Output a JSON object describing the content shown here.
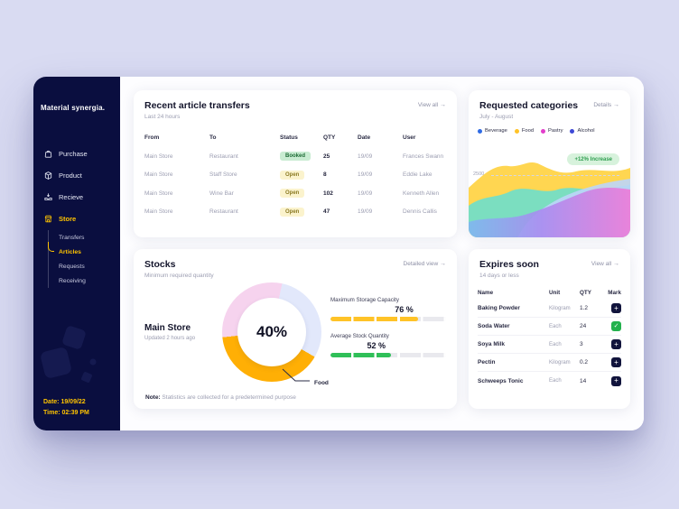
{
  "app": {
    "brand": "Material synergia."
  },
  "icons": {
    "arrow": "→",
    "plus": "+",
    "check": "✓"
  },
  "sidebar": {
    "items": [
      {
        "label": "Purchase"
      },
      {
        "label": "Product"
      },
      {
        "label": "Recieve"
      },
      {
        "label": "Store"
      }
    ],
    "sub_items": [
      {
        "label": "Transfers"
      },
      {
        "label": "Articles"
      },
      {
        "label": "Requests"
      },
      {
        "label": "Receiving"
      }
    ],
    "date": "Date: 19/09/22",
    "time": "Time: 02:39 PM"
  },
  "transfers": {
    "title": "Recent article transfers",
    "subtitle": "Last 24 hours",
    "view_all": "View all",
    "columns": {
      "from": "From",
      "to": "To",
      "status": "Status",
      "qty": "QTY",
      "date": "Date",
      "user": "User"
    },
    "rows": [
      {
        "from": "Main Store",
        "to": "Restaurant",
        "status": "Booked",
        "qty": "25",
        "date": "19/09",
        "user": "Frances Swann"
      },
      {
        "from": "Main Store",
        "to": "Staff Store",
        "status": "Open",
        "qty": "8",
        "date": "19/09",
        "user": "Eddie Lake"
      },
      {
        "from": "Main Store",
        "to": "Wine Bar",
        "status": "Open",
        "qty": "102",
        "date": "19/09",
        "user": "Kenneth Allen"
      },
      {
        "from": "Main Store",
        "to": "Restaurant",
        "status": "Open",
        "qty": "47",
        "date": "19/09",
        "user": "Dennis Callis"
      }
    ]
  },
  "categories": {
    "title": "Requested categories",
    "subtitle": "July - August",
    "details": "Details",
    "legend": [
      {
        "label": "Beverage",
        "color": "#2f6be4"
      },
      {
        "label": "Food",
        "color": "#ffc327"
      },
      {
        "label": "Pastry",
        "color": "#e23dcb"
      },
      {
        "label": "Alcohol",
        "color": "#3d49d6"
      }
    ],
    "increase_badge": "+12% Increase",
    "y_tick": "2500"
  },
  "stocks": {
    "title": "Stocks",
    "subtitle": "Minimum required quantity",
    "detailed_view": "Detailed view",
    "store_name": "Main Store",
    "updated": "Updated 2 hours ago",
    "donut": {
      "center_value": "40%",
      "callout_label": "Food",
      "segments": [
        {
          "color": "#ffaf05",
          "pct": 40
        },
        {
          "color": "#f6d3ee",
          "pct": 30
        },
        {
          "color": "#e2e8fb",
          "pct": 30
        }
      ]
    },
    "metrics": [
      {
        "label": "Maximum Storage Capacity",
        "value": "76 %",
        "pct": 76,
        "color": "#ffc327"
      },
      {
        "label": "Average Stock Quantity",
        "value": "52 %",
        "pct": 52,
        "color": "#2fbf58"
      }
    ],
    "note_label": "Note:",
    "note_text": "Statistics are collected for a predetermined purpose"
  },
  "expires": {
    "title": "Expires soon",
    "subtitle": "14 days or less",
    "view_all": "View all",
    "columns": {
      "name": "Name",
      "unit": "Unit",
      "qty": "QTY",
      "mark": "Mark"
    },
    "rows": [
      {
        "name": "Baking Powder",
        "unit": "Kilogram",
        "qty": "1.2",
        "mark": "plus-icon"
      },
      {
        "name": "Soda Water",
        "unit": "Each",
        "qty": "24",
        "mark": "check-icon"
      },
      {
        "name": "Soya Milk",
        "unit": "Each",
        "qty": "3",
        "mark": "plus-icon"
      },
      {
        "name": "Pectin",
        "unit": "Kilogram",
        "qty": "0.2",
        "mark": "plus-icon"
      },
      {
        "name": "Schweeps Tonic",
        "unit": "Each",
        "qty": "14",
        "mark": "plus-icon"
      }
    ]
  }
}
